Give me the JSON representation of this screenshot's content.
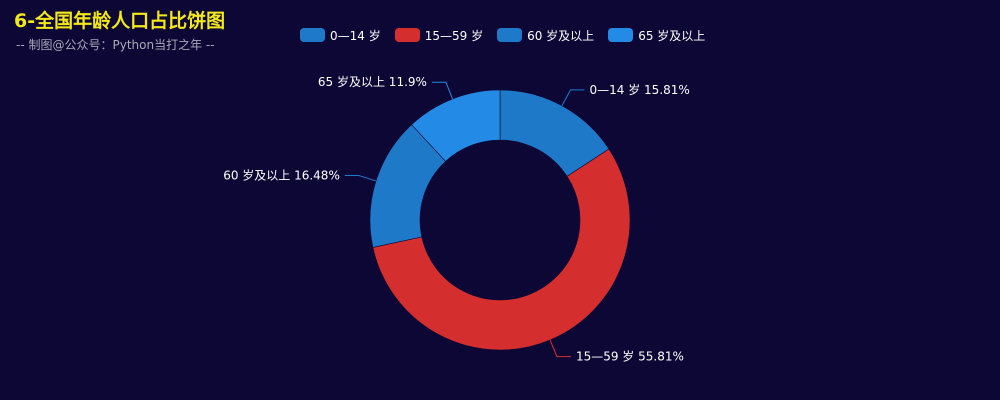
{
  "title": "6-全国年龄人口占比饼图",
  "subtitle": "-- 制图@公众号：Python当打之年 --",
  "chart_data": {
    "type": "pie",
    "donut": true,
    "legend_position": "top",
    "title": "6-全国年龄人口占比饼图",
    "subtitle": "-- 制图@公众号：Python当打之年 --",
    "slices": [
      {
        "name": "0—14 岁",
        "value": 15.81,
        "label": "0—14 岁  15.81%",
        "color": "#1f79c9"
      },
      {
        "name": "15—59 岁",
        "value": 55.81,
        "label": "15—59 岁  55.81%",
        "color": "#d42e2e"
      },
      {
        "name": "60 岁及以上",
        "value": 16.48,
        "label": "60 岁及以上  16.48%",
        "color": "#1f79c9"
      },
      {
        "name": "65 岁及以上",
        "value": 11.9,
        "label": "65 岁及以上  11.9%",
        "color": "#238be6"
      }
    ]
  }
}
